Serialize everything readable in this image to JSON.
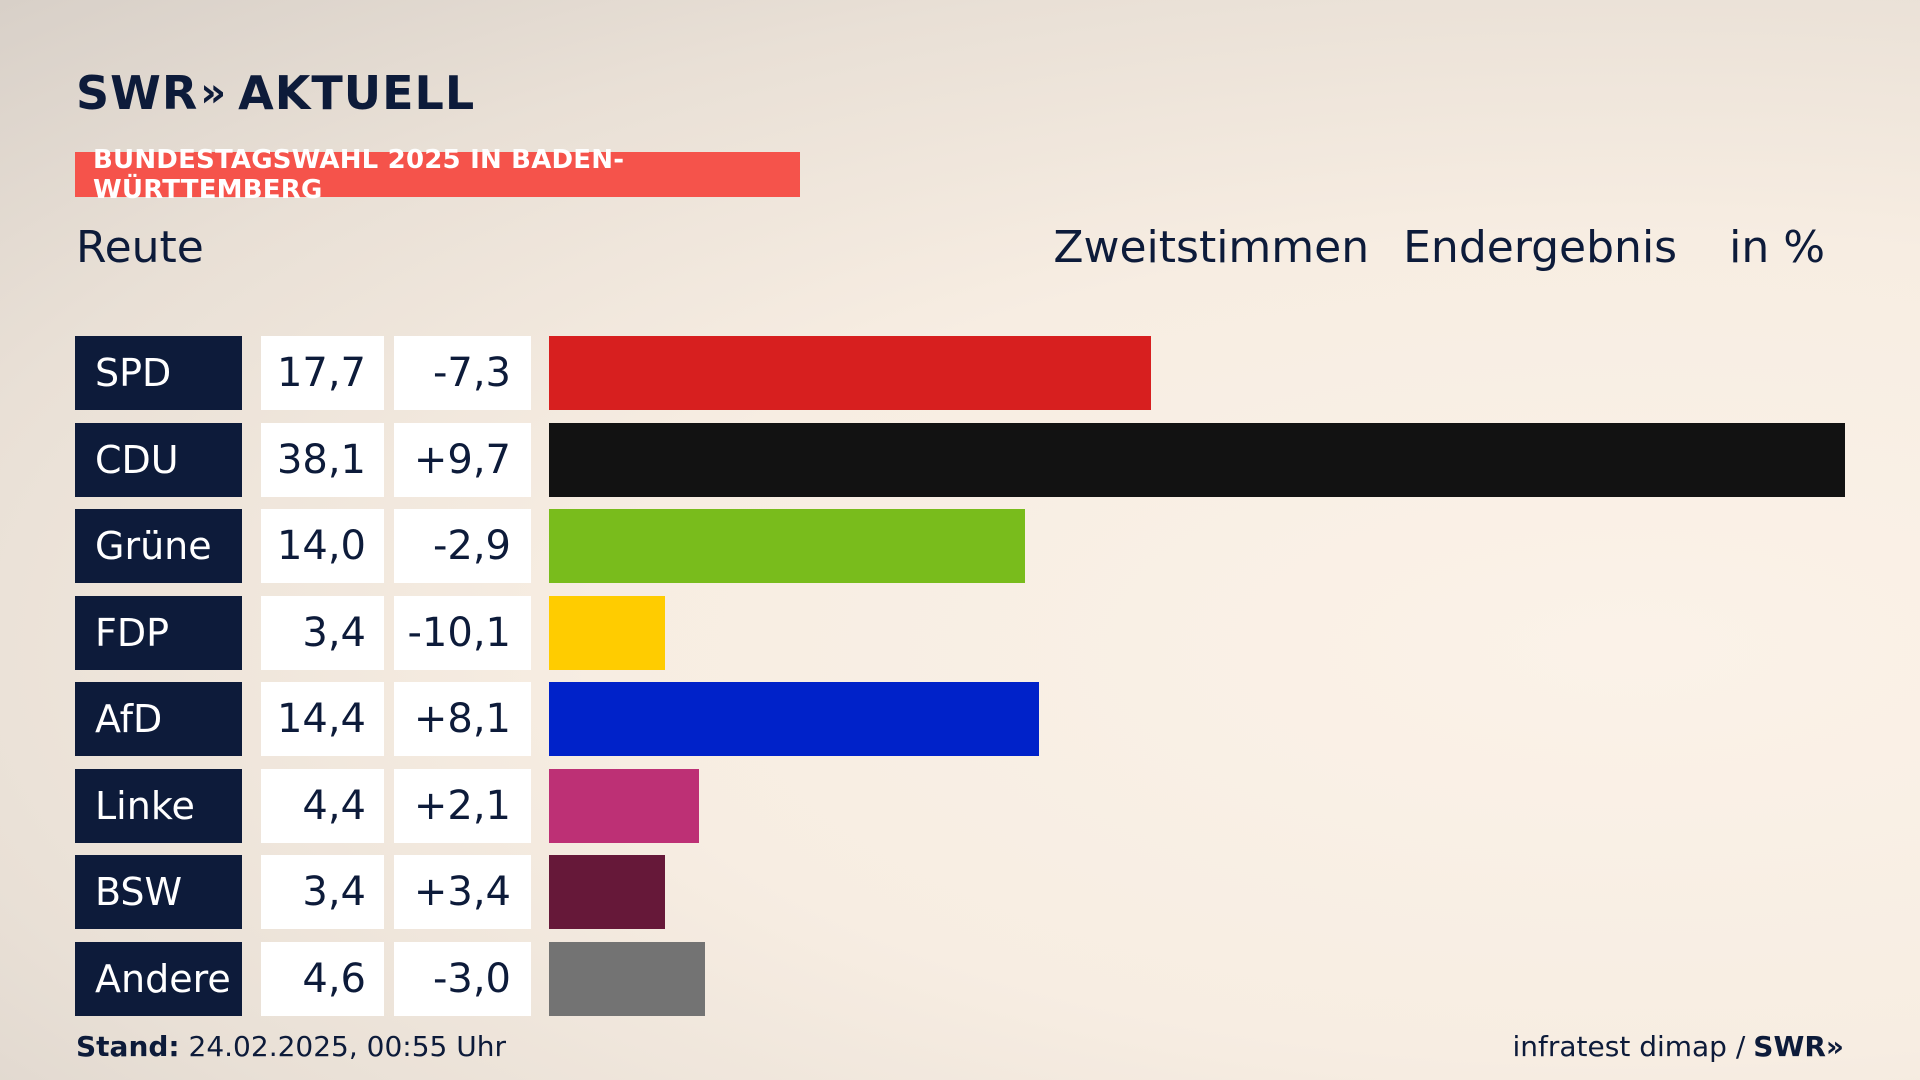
{
  "brand": {
    "logo_left": "SWR",
    "logo_chevrons": "»",
    "logo_right": "AKTUELL"
  },
  "banner": "BUNDESTAGSWAHL 2025 IN BADEN-WÜRTTEMBERG",
  "region": "Reute",
  "header": {
    "vote_type": "Zweitstimmen",
    "status": "Endergebnis",
    "unit": "in %"
  },
  "chart_data": {
    "type": "bar",
    "orientation": "horizontal",
    "categories": [
      "SPD",
      "CDU",
      "Grüne",
      "FDP",
      "AfD",
      "Linke",
      "BSW",
      "Andere"
    ],
    "values": [
      17.7,
      38.1,
      14.0,
      3.4,
      14.4,
      4.4,
      3.4,
      4.6
    ],
    "values_label": [
      "17,7",
      "38,1",
      "14,0",
      "3,4",
      "14,4",
      "4,4",
      "3,4",
      "4,6"
    ],
    "diff_label": [
      "-7,3",
      "+9,7",
      "-2,9",
      "-10,1",
      "+8,1",
      "+2,1",
      "+3,4",
      "-3,0"
    ],
    "colors": [
      "#d71f1f",
      "#121212",
      "#79bc1c",
      "#ffcc00",
      "#0022c9",
      "#bd3075",
      "#661839",
      "#737373"
    ],
    "xlim": [
      0,
      38.1
    ]
  },
  "footer": {
    "stand_label": "Stand:",
    "stand_value": "24.02.2025, 00:55 Uhr",
    "source": "infratest dimap /",
    "source_brand": "SWR»"
  }
}
